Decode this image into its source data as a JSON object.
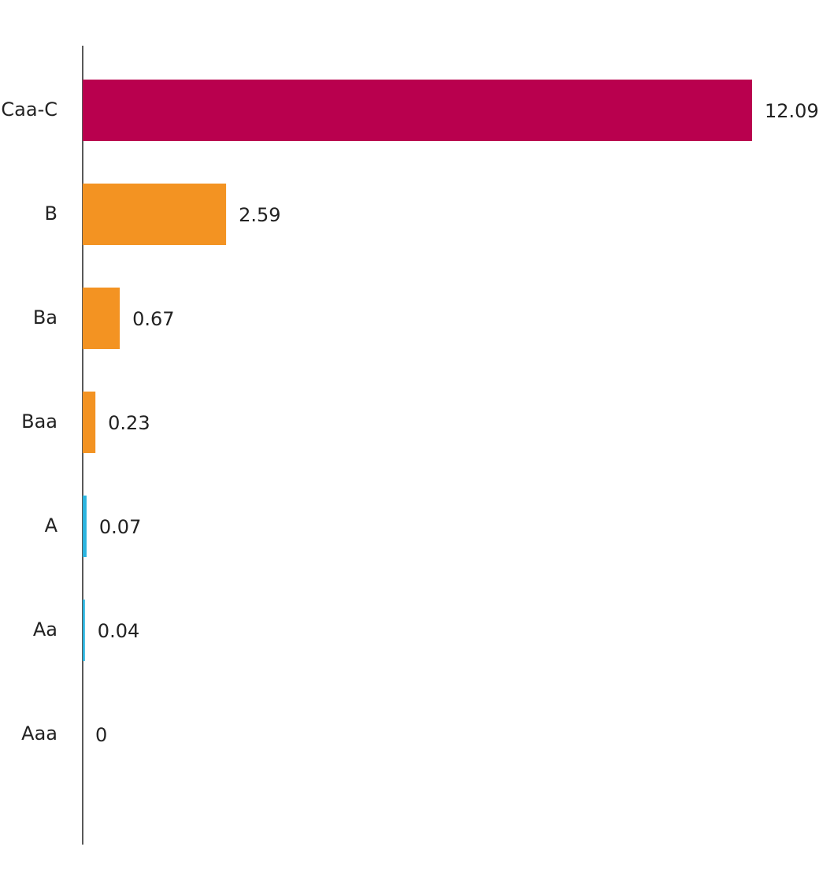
{
  "chart_data": {
    "type": "hbar",
    "categories": [
      "Caa-C",
      "B",
      "Ba",
      "Baa",
      "A",
      "Aa",
      "Aaa"
    ],
    "values": [
      12.09,
      2.59,
      0.67,
      0.23,
      0.07,
      0.04,
      0
    ],
    "colors": [
      "#b9004e",
      "#f39322",
      "#f39322",
      "#f39322",
      "#2cb5e0",
      "#2cb5e0",
      "#2cb5e0"
    ],
    "xlim": [
      0,
      12.09
    ]
  }
}
